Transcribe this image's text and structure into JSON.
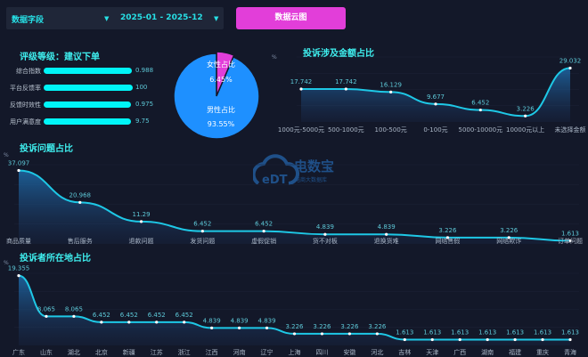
{
  "filters": {
    "field": "数据字段",
    "date_range": "2025-01 - 2025-12",
    "button": "数据云图"
  },
  "rating": {
    "title": "评级等级：建议下单",
    "metrics": [
      {
        "label": "综合指数",
        "value": "0.988",
        "fill": 0.988
      },
      {
        "label": "平台反馈率",
        "value": "100",
        "fill": 1.0
      },
      {
        "label": "反馈时效性",
        "value": "0.975",
        "fill": 0.975
      },
      {
        "label": "用户满意度",
        "value": "9.75",
        "fill": 0.975
      }
    ]
  },
  "colors": {
    "accent": "#27e0e6",
    "line": "#1ec8e6",
    "male": "#1e90ff",
    "female": "#e23ed9",
    "button": "#e23ed9"
  },
  "logo": {
    "text": "电数宝",
    "sub": "电商大数据库",
    "mark": "eDT"
  },
  "chart_data": [
    {
      "type": "pie",
      "slices": [
        {
          "name": "女性占比",
          "value": 6.45,
          "label": "6.45%"
        },
        {
          "name": "男性占比",
          "value": 93.55,
          "label": "93.55%"
        }
      ]
    },
    {
      "type": "area",
      "title": "投诉涉及金额占比",
      "ylabel": "%",
      "categories": [
        "1000元-5000元",
        "500-1000元",
        "100-500元",
        "0-100元",
        "5000-10000元",
        "10000元以上",
        "未选择金额"
      ],
      "values": [
        17.742,
        17.742,
        16.129,
        9.677,
        6.452,
        3.226,
        29.032
      ],
      "labels": [
        "17.742",
        "17.742",
        "16.129",
        "9.677",
        "6.452",
        "3.226",
        "29.032"
      ],
      "ylim": [
        0,
        35
      ]
    },
    {
      "type": "area",
      "title": "投诉问题占比",
      "ylabel": "%",
      "categories": [
        "商品质量",
        "售后服务",
        "退款问题",
        "发货问题",
        "虚假促销",
        "货不对板",
        "退换货难",
        "网络售假",
        "网络欺诈",
        "订单问题"
      ],
      "values": [
        37.097,
        20.968,
        11.29,
        6.452,
        6.452,
        4.839,
        4.839,
        3.226,
        3.226,
        1.613
      ],
      "labels": [
        "37.097",
        "20.968",
        "11.29",
        "6.452",
        "6.452",
        "4.839",
        "4.839",
        "3.226",
        "3.226",
        "1.613"
      ],
      "ylim": [
        0,
        40
      ]
    },
    {
      "type": "area",
      "title": "投诉者所在地占比",
      "ylabel": "%",
      "categories": [
        "广东",
        "山东",
        "湖北",
        "北京",
        "新疆",
        "江苏",
        "浙江",
        "江西",
        "河南",
        "辽宁",
        "上海",
        "四川",
        "安徽",
        "河北",
        "吉林",
        "天津",
        "广西",
        "湖南",
        "福建",
        "重庆",
        "青海"
      ],
      "values": [
        19.355,
        8.065,
        8.065,
        6.452,
        6.452,
        6.452,
        6.452,
        4.839,
        4.839,
        4.839,
        3.226,
        3.226,
        3.226,
        3.226,
        1.613,
        1.613,
        1.613,
        1.613,
        1.613,
        1.613,
        1.613
      ],
      "labels": [
        "19.355",
        "8.065",
        "8.065",
        "6.452",
        "6.452",
        "6.452",
        "6.452",
        "4.839",
        "4.839",
        "4.839",
        "3.226",
        "3.226",
        "3.226",
        "3.226",
        "1.613",
        "1.613",
        "1.613",
        "1.613",
        "1.613",
        "1.613",
        "1.613"
      ],
      "ylim": [
        0,
        20
      ]
    }
  ]
}
